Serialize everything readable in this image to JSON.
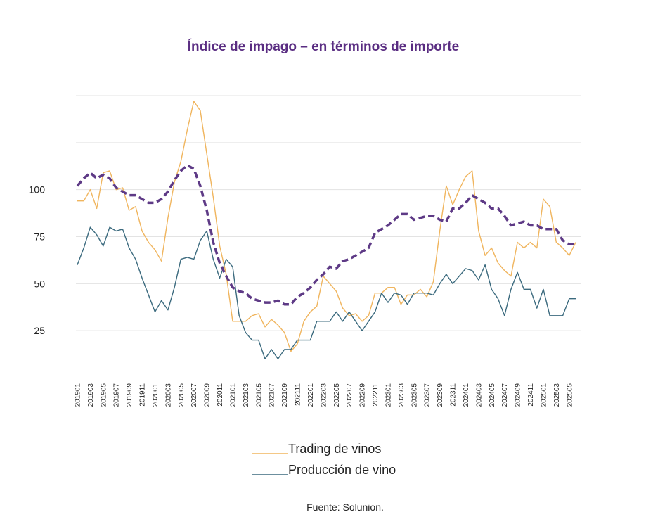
{
  "chart_data": {
    "type": "line",
    "title": "Índice de impago – en términos de importe",
    "source": "Fuente: Solunion.",
    "categories": [
      "201901",
      null,
      "201903",
      null,
      "201905",
      null,
      "201907",
      null,
      "201909",
      null,
      "201911",
      null,
      "202001",
      null,
      "202003",
      null,
      "202005",
      null,
      "202007",
      null,
      "202009",
      null,
      "202011",
      null,
      "202101",
      null,
      "202103",
      null,
      "202105",
      null,
      "202107",
      null,
      "202109",
      null,
      "202111",
      null,
      "202201",
      null,
      "202203",
      null,
      "202205",
      null,
      "202207",
      null,
      "202209",
      null,
      "202211",
      null,
      "202301",
      null,
      "202303",
      null,
      "202305",
      null,
      "202307",
      null,
      "202309",
      null,
      "202311",
      null,
      "202401",
      null,
      "202403",
      null,
      "202405",
      null,
      "202407",
      null,
      "202409",
      null,
      "202411",
      null,
      "202501",
      null,
      "202503",
      null,
      "202505",
      null
    ],
    "series": [
      {
        "name": "Trading de vinos",
        "color": "#f0b55e",
        "dashed": false,
        "values": [
          94,
          94,
          100,
          90,
          109,
          110,
          100,
          101,
          89,
          91,
          78,
          72,
          68,
          62,
          85,
          104,
          115,
          132,
          147,
          142,
          119,
          96,
          70,
          55,
          30,
          30,
          30,
          33,
          34,
          27,
          31,
          28,
          24,
          14,
          18,
          30,
          35,
          38,
          54,
          50,
          46,
          37,
          33,
          34,
          30,
          33,
          45,
          45,
          48,
          48,
          39,
          44,
          44,
          47,
          43,
          51,
          78,
          102,
          92,
          100,
          107,
          110,
          78,
          65,
          69,
          61,
          57,
          54,
          72,
          69,
          72,
          69,
          95,
          91,
          72,
          69,
          65,
          72
        ]
      },
      {
        "name": "Producción de vino",
        "color": "#3b6a7e",
        "dashed": false,
        "values": [
          60,
          69,
          80,
          76,
          70,
          80,
          78,
          79,
          69,
          63,
          53,
          44,
          35,
          41,
          36,
          48,
          63,
          64,
          63,
          73,
          78,
          63,
          53,
          63,
          59,
          33,
          24,
          20,
          20,
          10,
          15,
          10,
          15,
          15,
          20,
          20,
          20,
          30,
          30,
          30,
          35,
          30,
          35,
          30,
          25,
          30,
          35,
          45,
          40,
          45,
          44,
          39,
          45,
          45,
          45,
          44,
          50,
          55,
          50,
          54,
          58,
          57,
          52,
          60,
          47,
          42,
          33,
          47,
          56,
          47,
          47,
          37,
          47,
          33,
          33,
          33,
          42,
          42
        ]
      },
      {
        "color": "#5e3a86",
        "dashed": true,
        "values": [
          102,
          106,
          109,
          106,
          108,
          106,
          101,
          99,
          97,
          97,
          95,
          93,
          93,
          95,
          99,
          105,
          110,
          113,
          111,
          102,
          89,
          72,
          61,
          54,
          48,
          46,
          45,
          42,
          41,
          40,
          40,
          41,
          39,
          39,
          43,
          45,
          48,
          52,
          55,
          59,
          58,
          62,
          63,
          65,
          67,
          69,
          77,
          79,
          81,
          84,
          87,
          87,
          84,
          85,
          86,
          86,
          84,
          83,
          90,
          90,
          93,
          97,
          95,
          93,
          90,
          90,
          86,
          81,
          82,
          83,
          81,
          81,
          79,
          79,
          79,
          73,
          71,
          71
        ]
      }
    ],
    "ylim": [
      0,
      150
    ],
    "yticks": [
      25,
      50,
      75,
      100
    ],
    "ygrid": [
      25,
      50,
      75,
      100,
      125,
      150
    ],
    "grid": true
  }
}
